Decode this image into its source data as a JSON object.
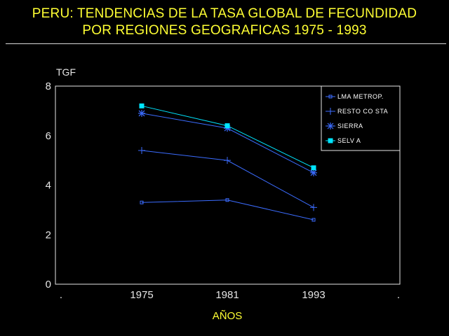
{
  "title": {
    "line1": "PERU: TENDENCIAS DE LA TASA GLOBAL DE FECUNDIDAD",
    "line2": "POR REGIONES GEOGRAFICAS 1975 - 1993"
  },
  "chart_data": {
    "type": "line",
    "title": "PERU: TENDENCIAS DE LA TASA GLOBAL DE FECUNDIDAD POR REGIONES GEOGRAFICAS 1975 - 1993",
    "xlabel": "AÑOS",
    "ylabel": "TGF",
    "categories": [
      "1975",
      "1981",
      "1993"
    ],
    "yticks": [
      "0",
      "2",
      "4",
      "6",
      "8"
    ],
    "ylim": [
      0,
      8
    ],
    "grid": false,
    "legend_position": "top-right",
    "series": [
      {
        "name": "LMA METROP.",
        "values": [
          3.3,
          3.4,
          2.6
        ],
        "color": "#3b6cff",
        "marker": "small-square"
      },
      {
        "name": "RESTO CO STA",
        "values": [
          5.4,
          5.0,
          3.1
        ],
        "color": "#3b6cff",
        "marker": "plus"
      },
      {
        "name": "SIERRA",
        "values": [
          6.9,
          6.3,
          4.5
        ],
        "color": "#3b6cff",
        "marker": "asterisk"
      },
      {
        "name": "SELV A",
        "values": [
          7.2,
          6.4,
          4.7
        ],
        "color": "#00e5ff",
        "marker": "filled-square"
      }
    ],
    "colors": {
      "axis": "#e6e6e6",
      "title": "#ffff33",
      "background": "#000000"
    }
  }
}
